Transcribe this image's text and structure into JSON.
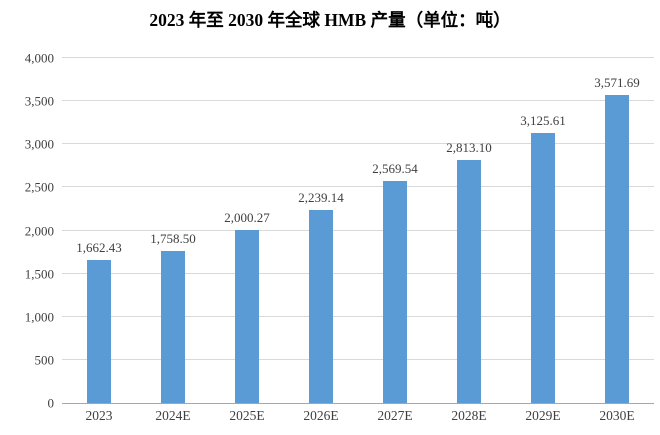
{
  "title": "2023 年至 2030 年全球 HMB 产量（单位：吨）",
  "chart_data": {
    "type": "bar",
    "title": "2023 年至 2030 年全球 HMB 产量（单位：吨）",
    "categories": [
      "2023",
      "2024E",
      "2025E",
      "2026E",
      "2027E",
      "2028E",
      "2029E",
      "2030E"
    ],
    "values": [
      1662.43,
      1758.5,
      2000.27,
      2239.14,
      2569.54,
      2813.1,
      3125.61,
      3571.69
    ],
    "value_labels": [
      "1,662.43",
      "1,758.50",
      "2,000.27",
      "2,239.14",
      "2,569.54",
      "2,813.10",
      "3,125.61",
      "3,571.69"
    ],
    "xlabel": "",
    "ylabel": "",
    "ylim": [
      0,
      4000
    ],
    "y_ticks": [
      0,
      500,
      1000,
      1500,
      2000,
      2500,
      3000,
      3500,
      4000
    ],
    "y_tick_labels": [
      "0",
      "500",
      "1,000",
      "1,500",
      "2,000",
      "2,500",
      "3,000",
      "3,500",
      "4,000"
    ],
    "grid": true,
    "legend": "none",
    "colors": {
      "bar": "#5b9bd5",
      "gridline": "#d9d9d9",
      "axis_line": "#a6a6a6",
      "tick_text": "#404040",
      "value_text": "#404040",
      "title_text": "#000000",
      "background": "#ffffff"
    }
  }
}
